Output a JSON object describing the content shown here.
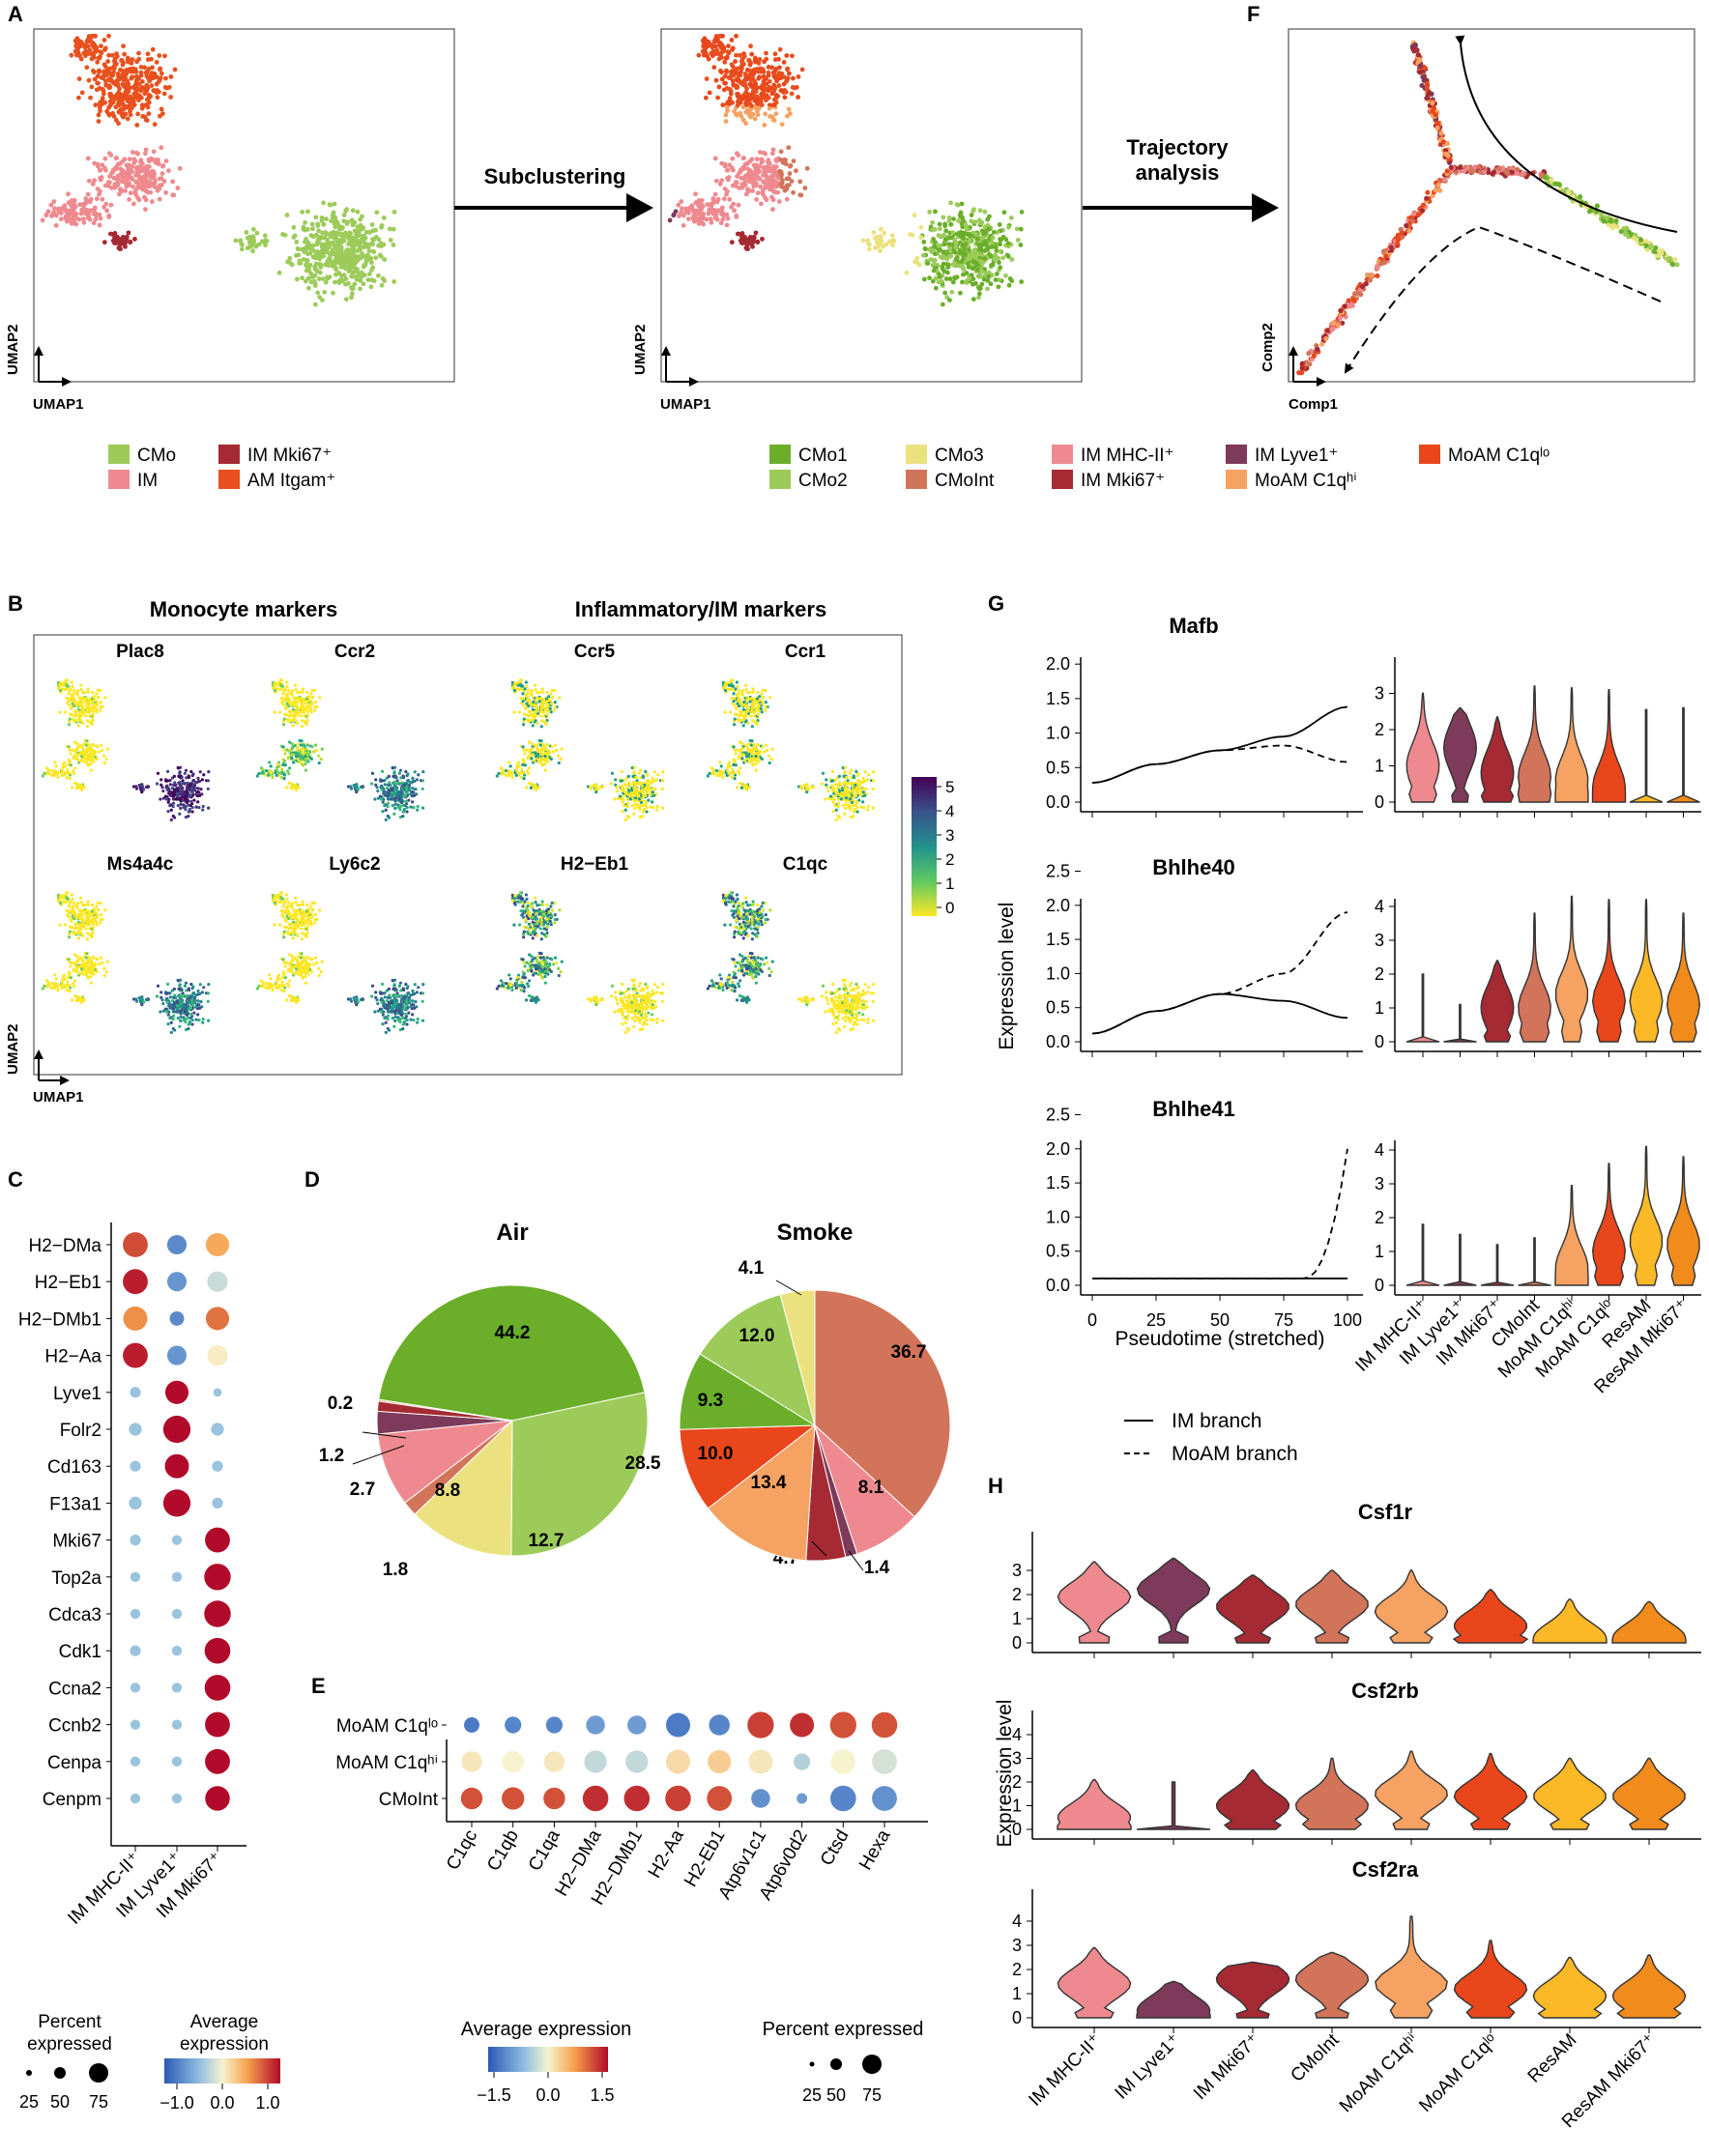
{
  "colors": {
    "CMo": "#9ccb5a",
    "IM": "#ee8a8f",
    "IM_Mki67": "#a52a33",
    "AM_Itgam": "#e8511f",
    "CMo1": "#6aae2a",
    "CMo2": "#9ccb5a",
    "CMo3": "#ebe27f",
    "CMoInt": "#d1745a",
    "IM_MHC": "#ee8a8f",
    "IM_Lyve1": "#7e3a5a",
    "MoAM_hi": "#f5a262",
    "MoAM_lo": "#e9461c",
    "ResAM": "#fbb827",
    "ResAM_Mki67": "#f18b1b"
  },
  "panelA": {
    "label": "A",
    "xlabel": "UMAP1",
    "ylabel": "UMAP2",
    "arrow1_label": "Subclustering",
    "legend": [
      {
        "key": "CMo",
        "label": "CMo"
      },
      {
        "key": "IM",
        "label": "IM"
      },
      {
        "key": "IM_Mki67",
        "label": "IM Mki67⁺"
      },
      {
        "key": "AM_Itgam",
        "label": "AM Itgam⁺"
      }
    ]
  },
  "panelMid": {
    "xlabel": "UMAP1",
    "ylabel": "UMAP2",
    "arrow2_label": "Trajectory analysis",
    "legend": [
      {
        "key": "CMo1",
        "label": "CMo1"
      },
      {
        "key": "CMo2",
        "label": "CMo2"
      },
      {
        "key": "CMo3",
        "label": "CMo3"
      },
      {
        "key": "CMoInt",
        "label": "CMoInt"
      },
      {
        "key": "IM_MHC",
        "label": "IM MHC-II⁺"
      },
      {
        "key": "IM_Mki67",
        "label": "IM Mki67⁺"
      },
      {
        "key": "IM_Lyve1",
        "label": "IM Lyve1⁺"
      },
      {
        "key": "MoAM_hi",
        "label": "MoAM C1qʰⁱ"
      },
      {
        "key": "MoAM_lo",
        "label": "MoAM C1qˡᵒ"
      }
    ]
  },
  "panelF": {
    "label": "F",
    "xlabel": "Comp1",
    "ylabel": "Comp2"
  },
  "panelB": {
    "label": "B",
    "group1": "Monocyte markers",
    "group2": "Inflammatory/IM markers",
    "genes": [
      "Plac8",
      "Ccr2",
      "Ccr5",
      "Ccr1",
      "Ms4a4c",
      "Ly6c2",
      "H2−Eb1",
      "C1qc"
    ],
    "xlabel": "UMAP1",
    "ylabel": "UMAP2",
    "colorbar_ticks": [
      "5",
      "4",
      "3",
      "2",
      "1",
      "0"
    ]
  },
  "panelC": {
    "label": "C",
    "genes": [
      "H2−DMa",
      "H2−Eb1",
      "H2−DMb1",
      "H2−Aa",
      "Lyve1",
      "Folr2",
      "Cd163",
      "F13a1",
      "Mki67",
      "Top2a",
      "Cdca3",
      "Cdk1",
      "Ccna2",
      "Ccnb2",
      "Cenpa",
      "Cenpm"
    ],
    "groups": [
      "IM MHC-II⁺",
      "IM Lyve1⁺",
      "IM Mki67⁺"
    ],
    "legend_size_title": "Percent expressed",
    "legend_color_title": "Average expression",
    "size_ticks": [
      "25",
      "50",
      "75"
    ],
    "color_ticks": [
      "−1.0",
      "0.0",
      "1.0"
    ],
    "chart_data": {
      "type": "dotplot",
      "pct": [
        [
          70,
          40,
          60
        ],
        [
          70,
          40,
          45
        ],
        [
          65,
          20,
          60
        ],
        [
          70,
          40,
          45
        ],
        [
          10,
          60,
          5
        ],
        [
          15,
          85,
          15
        ],
        [
          10,
          65,
          10
        ],
        [
          15,
          85,
          10
        ],
        [
          10,
          8,
          70
        ],
        [
          8,
          8,
          80
        ],
        [
          8,
          8,
          80
        ],
        [
          10,
          8,
          75
        ],
        [
          8,
          8,
          75
        ],
        [
          8,
          8,
          70
        ],
        [
          8,
          8,
          70
        ],
        [
          8,
          8,
          68
        ]
      ],
      "avg": [
        [
          1.05,
          -1.0,
          0.55
        ],
        [
          1.3,
          -0.9,
          -0.25
        ],
        [
          0.7,
          -1.0,
          0.85
        ],
        [
          1.3,
          -0.9,
          0.05
        ],
        [
          -0.5,
          1.4,
          -0.5
        ],
        [
          -0.5,
          1.4,
          -0.5
        ],
        [
          -0.5,
          1.4,
          -0.5
        ],
        [
          -0.5,
          1.4,
          -0.5
        ],
        [
          -0.5,
          -0.5,
          1.4
        ],
        [
          -0.5,
          -0.5,
          1.4
        ],
        [
          -0.5,
          -0.5,
          1.4
        ],
        [
          -0.5,
          -0.5,
          1.4
        ],
        [
          -0.5,
          -0.5,
          1.4
        ],
        [
          -0.5,
          -0.5,
          1.4
        ],
        [
          -0.5,
          -0.5,
          1.4
        ],
        [
          -0.5,
          -0.5,
          1.4
        ]
      ]
    }
  },
  "panelD": {
    "label": "D",
    "chart_data": [
      {
        "type": "pie",
        "title": "Air",
        "slices": [
          {
            "key": "CMo1",
            "value": 44.2,
            "label": "44.2"
          },
          {
            "key": "CMo2",
            "value": 28.5,
            "label": "28.5"
          },
          {
            "key": "CMo3",
            "value": 12.7,
            "label": "12.7"
          },
          {
            "key": "CMoInt",
            "value": 1.8,
            "label": "1.8"
          },
          {
            "key": "IM_MHC",
            "value": 8.8,
            "label": "8.8"
          },
          {
            "key": "IM_Lyve1",
            "value": 2.7,
            "label": "2.7"
          },
          {
            "key": "IM_Mki67",
            "value": 1.2,
            "label": "1.2"
          },
          {
            "key": "MoAM_hi",
            "value": 0.2,
            "label": "0.2"
          }
        ]
      },
      {
        "type": "pie",
        "title": "Smoke",
        "slices": [
          {
            "key": "CMoInt",
            "value": 36.7,
            "label": "36.7"
          },
          {
            "key": "IM_MHC",
            "value": 8.1,
            "label": "8.1"
          },
          {
            "key": "IM_Lyve1",
            "value": 1.4,
            "label": "1.4"
          },
          {
            "key": "IM_Mki67",
            "value": 4.7,
            "label": "4.7"
          },
          {
            "key": "MoAM_hi",
            "value": 13.4,
            "label": "13.4"
          },
          {
            "key": "MoAM_lo",
            "value": 10.0,
            "label": "10.0"
          },
          {
            "key": "CMo1",
            "value": 9.3,
            "label": "9.3"
          },
          {
            "key": "CMo2",
            "value": 12.0,
            "label": "12.0"
          },
          {
            "key": "CMo3",
            "value": 4.1,
            "label": "4.1"
          }
        ]
      }
    ]
  },
  "panelE": {
    "label": "E",
    "genes": [
      "C1qc",
      "C1qb",
      "C1qa",
      "H2−DMa",
      "H2−DMb1",
      "H2-Aa",
      "H2-Eb1",
      "Atp6v1c1",
      "Atp6v0d2",
      "Ctsd",
      "Hexa"
    ],
    "rows": [
      "MoAM C1qˡᵒ",
      "MoAM C1qʰⁱ",
      "CMoInt"
    ],
    "legend_color_title": "Average expression",
    "legend_size_title": "Percent expressed",
    "color_ticks": [
      "−1.5",
      "0.0",
      "1.5"
    ],
    "size_ticks": [
      "25",
      "50",
      "75"
    ],
    "chart_data": {
      "type": "dotplot",
      "pct": [
        [
          25,
          30,
          30,
          40,
          40,
          70,
          50,
          85,
          70,
          85,
          80
        ],
        [
          50,
          55,
          50,
          60,
          60,
          70,
          65,
          70,
          30,
          75,
          75
        ],
        [
          55,
          60,
          55,
          80,
          80,
          80,
          75,
          40,
          10,
          80,
          75
        ]
      ],
      "avg": [
        [
          -1.2,
          -1.1,
          -1.1,
          -0.9,
          -0.9,
          -1.2,
          -1.1,
          1.2,
          1.3,
          1.1,
          1.1
        ],
        [
          0.1,
          0.0,
          0.1,
          -0.3,
          -0.3,
          0.2,
          0.3,
          0.1,
          -0.4,
          0.0,
          -0.2
        ],
        [
          1.1,
          1.1,
          1.1,
          1.3,
          1.3,
          1.2,
          1.1,
          -1.0,
          -0.9,
          -1.1,
          -1.0
        ]
      ]
    }
  },
  "panelG": {
    "label": "G",
    "genes": [
      "Mafb",
      "Bhlhe40",
      "Bhlhe41"
    ],
    "ylabel": "Expression level",
    "xlabel": "Pseudotime (stretched)",
    "xticks": [
      "0",
      "25",
      "50",
      "75",
      "100"
    ],
    "yticks": [
      [
        "0.0",
        "0.5",
        "1.0",
        "1.5",
        "2.0"
      ],
      [
        "0.0",
        "0.5",
        "1.0",
        "1.5",
        "2.0",
        "2.5"
      ],
      [
        "0.0",
        "0.5",
        "1.0",
        "1.5",
        "2.0",
        "2.5"
      ]
    ],
    "violin_yticks": [
      [
        "0",
        "1",
        "2",
        "3"
      ],
      [
        "0",
        "1",
        "2",
        "3",
        "4"
      ],
      [
        "0",
        "1",
        "2",
        "3",
        "4"
      ]
    ],
    "groups": [
      "IM MHC-II⁺",
      "IM Lyve1⁺",
      "IM Mki67⁺",
      "CMoInt",
      "MoAM C1qʰⁱ",
      "MoAM C1qˡᵒ",
      "ResAM",
      "ResAM Mki67⁺"
    ],
    "legend_solid": "IM branch",
    "legend_dashed": "MoAM branch",
    "chart_data": {
      "type": "line",
      "x": [
        0,
        25,
        50,
        75,
        100
      ],
      "series": [
        {
          "gene": "Mafb",
          "name": "IM branch",
          "values": [
            0.28,
            0.55,
            0.75,
            0.95,
            1.38
          ]
        },
        {
          "gene": "Mafb",
          "name": "MoAM branch",
          "values": [
            0.28,
            0.55,
            0.75,
            0.82,
            0.58
          ]
        },
        {
          "gene": "Bhlhe40",
          "name": "IM branch",
          "values": [
            0.12,
            0.45,
            0.7,
            0.6,
            0.35
          ]
        },
        {
          "gene": "Bhlhe40",
          "name": "MoAM branch",
          "values": [
            0.12,
            0.45,
            0.7,
            1.0,
            1.9
          ]
        },
        {
          "gene": "Bhlhe41",
          "name": "IM branch",
          "values": [
            0.1,
            0.1,
            0.1,
            0.1,
            0.1
          ]
        },
        {
          "gene": "Bhlhe41",
          "name": "MoAM branch",
          "values": [
            0.1,
            0.1,
            0.1,
            0.1,
            2.0
          ]
        }
      ],
      "ylims": [
        [
          0,
          2.0
        ],
        [
          0,
          2.5
        ],
        [
          0,
          2.5
        ]
      ]
    }
  },
  "panelH": {
    "label": "H",
    "genes": [
      "Csf1r",
      "Csf2rb",
      "Csf2ra"
    ],
    "ylabel": "Expression level",
    "yticks": [
      [
        "0",
        "1",
        "2",
        "3"
      ],
      [
        "0",
        "1",
        "2",
        "3",
        "4"
      ],
      [
        "0",
        "1",
        "2",
        "3",
        "4"
      ]
    ],
    "groups": [
      "IM MHC-II⁺",
      "IM Lyve1⁺",
      "IM Mki67⁺",
      "CMoInt",
      "MoAM C1qʰⁱ",
      "MoAM C1qˡᵒ",
      "ResAM",
      "ResAM Mki67⁺"
    ]
  }
}
